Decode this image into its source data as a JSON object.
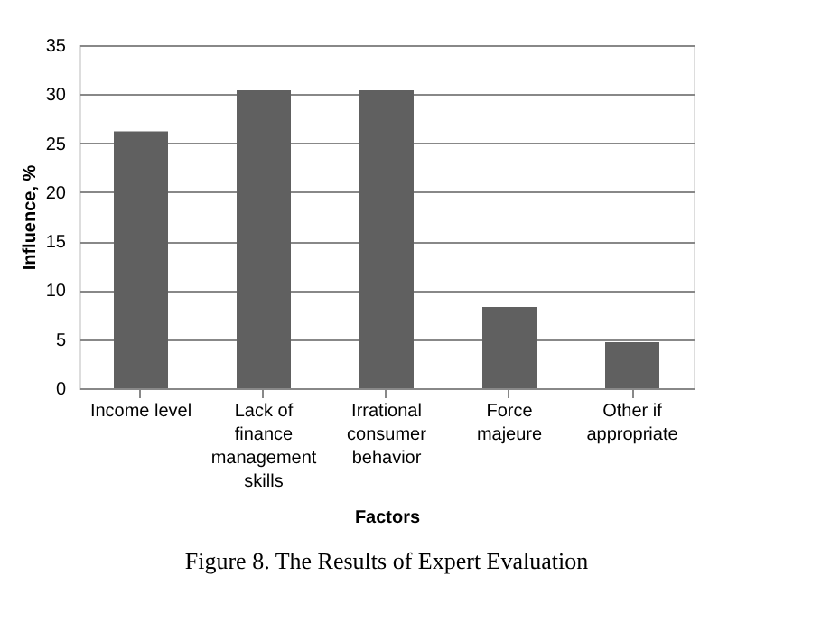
{
  "chart_data": {
    "type": "bar",
    "xlabel": "Factors",
    "ylabel": "Influence, %",
    "categories": [
      "Income level",
      "Lack of finance management skills",
      "Irrational consumer behavior",
      "Force majeure",
      "Other if appropriate"
    ],
    "values": [
      26.2,
      30.4,
      30.4,
      8.3,
      4.7
    ],
    "color": "#606060",
    "ylim": [
      0,
      35
    ],
    "yticks": [
      0,
      5,
      10,
      15,
      20,
      25,
      30,
      35
    ],
    "grid": "y",
    "annotations": [
      "Figure 8. The Results of Expert Evaluation"
    ]
  }
}
